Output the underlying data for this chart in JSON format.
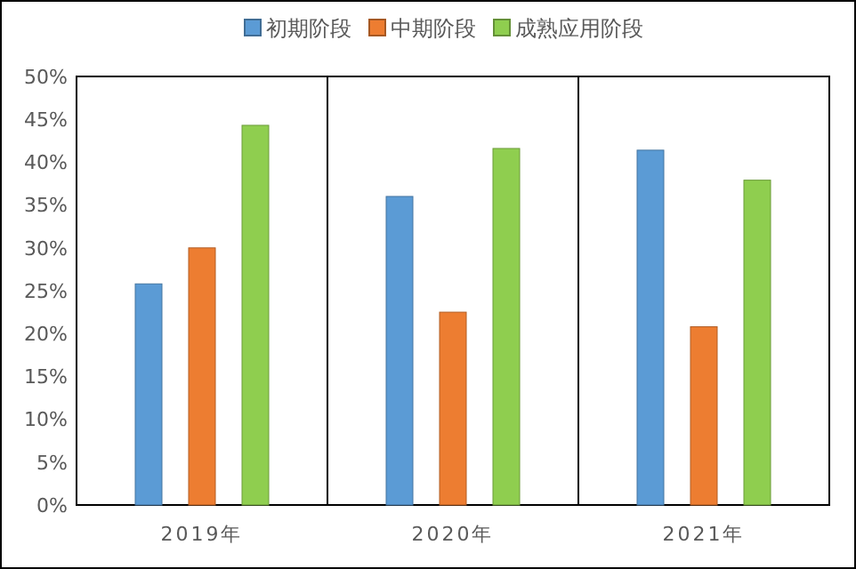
{
  "chart_data": {
    "type": "bar",
    "categories": [
      "2019年",
      "2020年",
      "2021年"
    ],
    "series": [
      {
        "name": "初期阶段",
        "color": "#5b9bd5",
        "values": [
          25.8,
          36.0,
          41.4
        ]
      },
      {
        "name": "中期阶段",
        "color": "#ed7d31",
        "values": [
          30.0,
          22.5,
          20.8
        ]
      },
      {
        "name": "成熟应用阶段",
        "color": "#8fce4f",
        "values": [
          44.3,
          41.6,
          37.9
        ]
      }
    ],
    "ylim": [
      0,
      50
    ],
    "yticks": [
      {
        "value": 0,
        "label": "0%"
      },
      {
        "value": 5,
        "label": "5%"
      },
      {
        "value": 10,
        "label": "10%"
      },
      {
        "value": 15,
        "label": "15%"
      },
      {
        "value": 20,
        "label": "20%"
      },
      {
        "value": 25,
        "label": "25%"
      },
      {
        "value": 30,
        "label": "30%"
      },
      {
        "value": 35,
        "label": "35%"
      },
      {
        "value": 40,
        "label": "40%"
      },
      {
        "value": 45,
        "label": "45%"
      },
      {
        "value": 50,
        "label": "50%"
      }
    ],
    "grid": false,
    "legend": "top"
  }
}
